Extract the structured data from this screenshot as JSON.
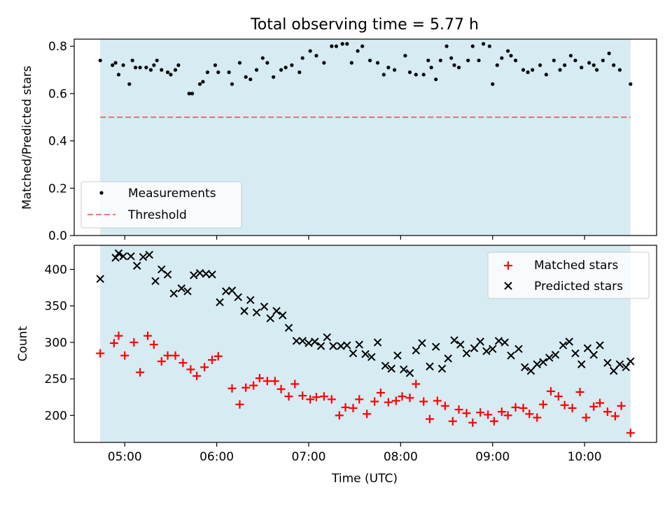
{
  "figure": {
    "title": "Total observing time = 5.77 h",
    "xlabel": "Time (UTC)",
    "x_ticks": [
      "05:00",
      "06:00",
      "07:00",
      "08:00",
      "09:00",
      "10:00"
    ]
  },
  "colors": {
    "span": "#add8e6",
    "measurements": "#000000",
    "threshold": "#ff0000",
    "matched": "#ff0000",
    "predicted": "#000000"
  },
  "chart_data": [
    {
      "type": "scatter",
      "ylabel": "Matched/Predicted stars",
      "ylim": [
        0,
        0.83
      ],
      "y_ticks": [
        0.0,
        0.2,
        0.4,
        0.6,
        0.8
      ],
      "xlim": [
        "04:27",
        "10:47"
      ],
      "shaded_span": [
        "04:44",
        "10:30"
      ],
      "legend": {
        "position": "lower-left",
        "entries": [
          "Measurements",
          "Threshold"
        ]
      },
      "threshold": {
        "name": "Threshold",
        "value": 0.5,
        "style": "dashed"
      },
      "series": [
        {
          "name": "Measurements",
          "x": [
            "04:44",
            "04:52",
            "04:54",
            "04:56",
            "04:59",
            "05:03",
            "05:05",
            "05:07",
            "05:10",
            "05:14",
            "05:17",
            "05:19",
            "05:21",
            "05:24",
            "05:28",
            "05:30",
            "05:33",
            "05:35",
            "05:42",
            "05:44",
            "05:49",
            "05:51",
            "05:54",
            "05:59",
            "06:01",
            "06:08",
            "06:10",
            "06:15",
            "06:19",
            "06:22",
            "06:26",
            "06:30",
            "06:33",
            "06:37",
            "06:42",
            "06:45",
            "06:49",
            "06:54",
            "06:56",
            "07:01",
            "07:05",
            "07:10",
            "07:15",
            "07:18",
            "07:22",
            "07:25",
            "07:28",
            "07:32",
            "07:35",
            "07:40",
            "07:45",
            "07:49",
            "07:52",
            "07:56",
            "08:03",
            "08:06",
            "08:10",
            "08:15",
            "08:18",
            "08:20",
            "08:23",
            "08:26",
            "08:30",
            "08:33",
            "08:35",
            "08:38",
            "08:44",
            "08:47",
            "08:51",
            "08:54",
            "08:58",
            "09:00",
            "09:03",
            "09:06",
            "09:10",
            "09:12",
            "09:15",
            "09:20",
            "09:23",
            "09:26",
            "09:31",
            "09:35",
            "09:40",
            "09:44",
            "09:47",
            "09:51",
            "09:54",
            "09:58",
            "10:03",
            "10:06",
            "10:08",
            "10:12",
            "10:16",
            "10:19",
            "10:23",
            "10:30"
          ],
          "y": [
            0.74,
            0.72,
            0.73,
            0.68,
            0.72,
            0.64,
            0.74,
            0.71,
            0.71,
            0.71,
            0.7,
            0.72,
            0.74,
            0.7,
            0.69,
            0.68,
            0.7,
            0.72,
            0.6,
            0.6,
            0.64,
            0.65,
            0.69,
            0.72,
            0.69,
            0.69,
            0.64,
            0.73,
            0.67,
            0.66,
            0.7,
            0.75,
            0.73,
            0.67,
            0.7,
            0.71,
            0.72,
            0.69,
            0.75,
            0.78,
            0.76,
            0.73,
            0.8,
            0.8,
            0.81,
            0.81,
            0.73,
            0.78,
            0.8,
            0.74,
            0.73,
            0.68,
            0.71,
            0.7,
            0.76,
            0.69,
            0.68,
            0.68,
            0.74,
            0.71,
            0.66,
            0.74,
            0.8,
            0.75,
            0.72,
            0.71,
            0.74,
            0.8,
            0.74,
            0.81,
            0.8,
            0.64,
            0.72,
            0.75,
            0.78,
            0.76,
            0.74,
            0.7,
            0.69,
            0.7,
            0.72,
            0.68,
            0.74,
            0.7,
            0.72,
            0.76,
            0.74,
            0.71,
            0.73,
            0.72,
            0.7,
            0.74,
            0.77,
            0.72,
            0.7,
            0.64
          ]
        }
      ]
    },
    {
      "type": "scatter",
      "ylabel": "Count",
      "ylim": [
        163,
        433
      ],
      "y_ticks": [
        200,
        250,
        300,
        350,
        400
      ],
      "xlim": [
        "04:27",
        "10:47"
      ],
      "shaded_span": [
        "04:44",
        "10:30"
      ],
      "legend": {
        "position": "top-right",
        "entries": [
          "Matched stars",
          "Predicted stars"
        ]
      },
      "series": [
        {
          "name": "Matched stars",
          "marker": "plus",
          "x": [
            "04:44",
            "04:53",
            "04:56",
            "05:00",
            "05:06",
            "05:10",
            "05:15",
            "05:19",
            "05:24",
            "05:28",
            "05:33",
            "05:38",
            "05:43",
            "05:47",
            "05:52",
            "05:57",
            "06:01",
            "06:10",
            "06:15",
            "06:19",
            "06:24",
            "06:28",
            "06:33",
            "06:38",
            "06:42",
            "06:47",
            "06:51",
            "06:56",
            "07:01",
            "07:05",
            "07:10",
            "07:15",
            "07:20",
            "07:24",
            "07:29",
            "07:33",
            "07:38",
            "07:43",
            "07:47",
            "07:52",
            "07:57",
            "08:01",
            "08:06",
            "08:10",
            "08:15",
            "08:19",
            "08:24",
            "08:29",
            "08:34",
            "08:38",
            "08:43",
            "08:47",
            "08:52",
            "08:57",
            "09:01",
            "09:06",
            "09:10",
            "09:15",
            "09:20",
            "09:24",
            "09:29",
            "09:33",
            "09:38",
            "09:43",
            "09:47",
            "09:52",
            "09:57",
            "10:01",
            "10:06",
            "10:10",
            "10:15",
            "10:20",
            "10:24",
            "10:30"
          ],
          "y": [
            285,
            299,
            309,
            282,
            300,
            259,
            309,
            297,
            274,
            282,
            282,
            272,
            263,
            254,
            266,
            276,
            281,
            237,
            215,
            238,
            241,
            251,
            247,
            247,
            236,
            226,
            243,
            227,
            222,
            225,
            226,
            222,
            200,
            211,
            210,
            222,
            202,
            219,
            231,
            218,
            220,
            226,
            224,
            243,
            219,
            195,
            220,
            213,
            192,
            208,
            203,
            190,
            204,
            201,
            192,
            205,
            200,
            211,
            210,
            202,
            197,
            215,
            233,
            226,
            214,
            210,
            232,
            197,
            212,
            217,
            205,
            199,
            213,
            176
          ]
        },
        {
          "name": "Predicted stars",
          "marker": "x",
          "x": [
            "04:44",
            "04:54",
            "04:56",
            "04:59",
            "05:04",
            "05:08",
            "05:12",
            "05:16",
            "05:20",
            "05:24",
            "05:28",
            "05:32",
            "05:37",
            "05:41",
            "05:45",
            "05:49",
            "05:53",
            "05:57",
            "06:02",
            "06:06",
            "06:10",
            "06:14",
            "06:18",
            "06:22",
            "06:26",
            "06:31",
            "06:35",
            "06:39",
            "06:43",
            "06:47",
            "06:52",
            "06:56",
            "07:00",
            "07:04",
            "07:08",
            "07:12",
            "07:16",
            "07:21",
            "07:25",
            "07:29",
            "07:33",
            "07:37",
            "07:41",
            "07:45",
            "07:50",
            "07:54",
            "07:58",
            "08:02",
            "08:06",
            "08:10",
            "08:14",
            "08:19",
            "08:23",
            "08:27",
            "08:31",
            "08:35",
            "08:39",
            "08:43",
            "08:48",
            "08:52",
            "08:56",
            "09:00",
            "09:04",
            "09:08",
            "09:12",
            "09:17",
            "09:21",
            "09:25",
            "09:29",
            "09:33",
            "09:37",
            "09:41",
            "09:46",
            "09:50",
            "09:54",
            "09:58",
            "10:02",
            "10:06",
            "10:10",
            "10:15",
            "10:19",
            "10:23",
            "10:27",
            "10:30"
          ],
          "y": [
            387,
            416,
            422,
            418,
            418,
            405,
            417,
            420,
            384,
            400,
            393,
            367,
            374,
            370,
            392,
            395,
            394,
            393,
            355,
            370,
            371,
            362,
            343,
            358,
            341,
            349,
            333,
            343,
            337,
            320,
            302,
            302,
            299,
            301,
            295,
            307,
            295,
            295,
            296,
            285,
            297,
            284,
            280,
            300,
            268,
            264,
            282,
            263,
            258,
            289,
            299,
            267,
            294,
            264,
            278,
            303,
            297,
            285,
            292,
            301,
            288,
            291,
            302,
            300,
            282,
            291,
            266,
            261,
            270,
            273,
            279,
            283,
            296,
            301,
            285,
            270,
            292,
            283,
            296,
            272,
            261,
            270,
            266,
            274
          ]
        }
      ]
    }
  ]
}
